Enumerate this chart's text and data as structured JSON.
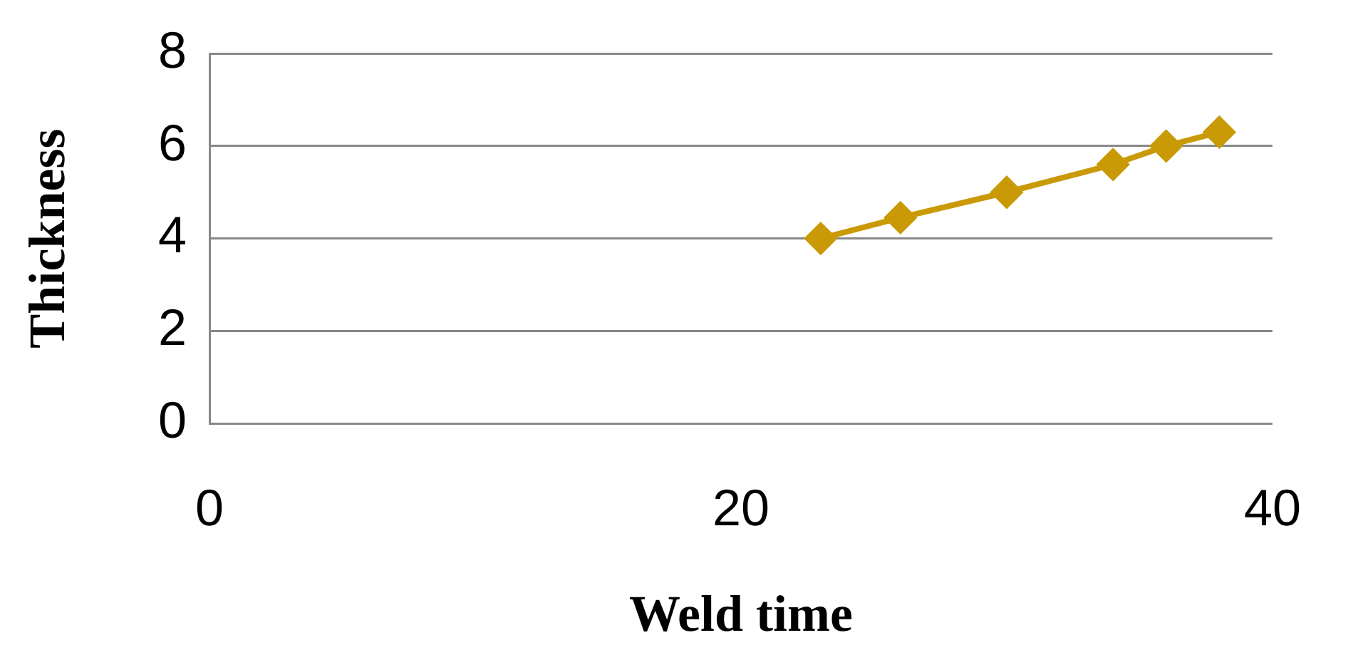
{
  "chart_data": {
    "type": "line",
    "xlabel": "Weld time",
    "ylabel": "Thickness",
    "x": [
      23,
      26,
      30,
      34,
      36,
      38
    ],
    "series": [
      {
        "color": "#c99a06",
        "values": [
          4.0,
          4.45,
          5.0,
          5.6,
          6.0,
          6.3
        ]
      }
    ],
    "xlim": [
      0,
      40
    ],
    "xticks": [
      0,
      20,
      40
    ],
    "ylim": [
      0,
      8
    ],
    "yticks": [
      0,
      2,
      4,
      6,
      8
    ],
    "grid": "y",
    "legend": false,
    "marker": "diamond",
    "line_style": "solid"
  }
}
